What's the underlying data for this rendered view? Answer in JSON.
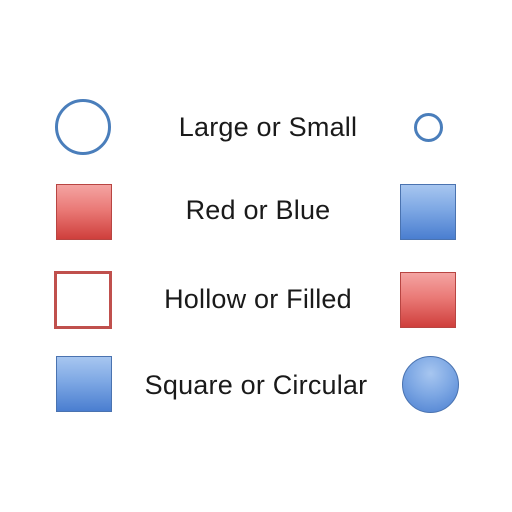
{
  "rows": [
    {
      "label": "Large or Small",
      "left_shape": {
        "kind": "circle",
        "size": "large",
        "fill": "hollow",
        "stroke_color": "#4a7ebb"
      },
      "right_shape": {
        "kind": "circle",
        "size": "small",
        "fill": "hollow",
        "stroke_color": "#4a7ebb"
      }
    },
    {
      "label": "Red or Blue",
      "left_shape": {
        "kind": "square",
        "fill": "filled",
        "color": "#e8706d"
      },
      "right_shape": {
        "kind": "square",
        "fill": "filled",
        "color": "#6f9de0"
      }
    },
    {
      "label": "Hollow or Filled",
      "left_shape": {
        "kind": "square",
        "fill": "hollow",
        "stroke_color": "#c0504d"
      },
      "right_shape": {
        "kind": "square",
        "fill": "filled",
        "color": "#e8706d"
      }
    },
    {
      "label": "Square or Circular",
      "left_shape": {
        "kind": "square",
        "fill": "filled",
        "color": "#6f9de0"
      },
      "right_shape": {
        "kind": "circle",
        "fill": "filled",
        "color": "#6f9de0"
      }
    }
  ]
}
